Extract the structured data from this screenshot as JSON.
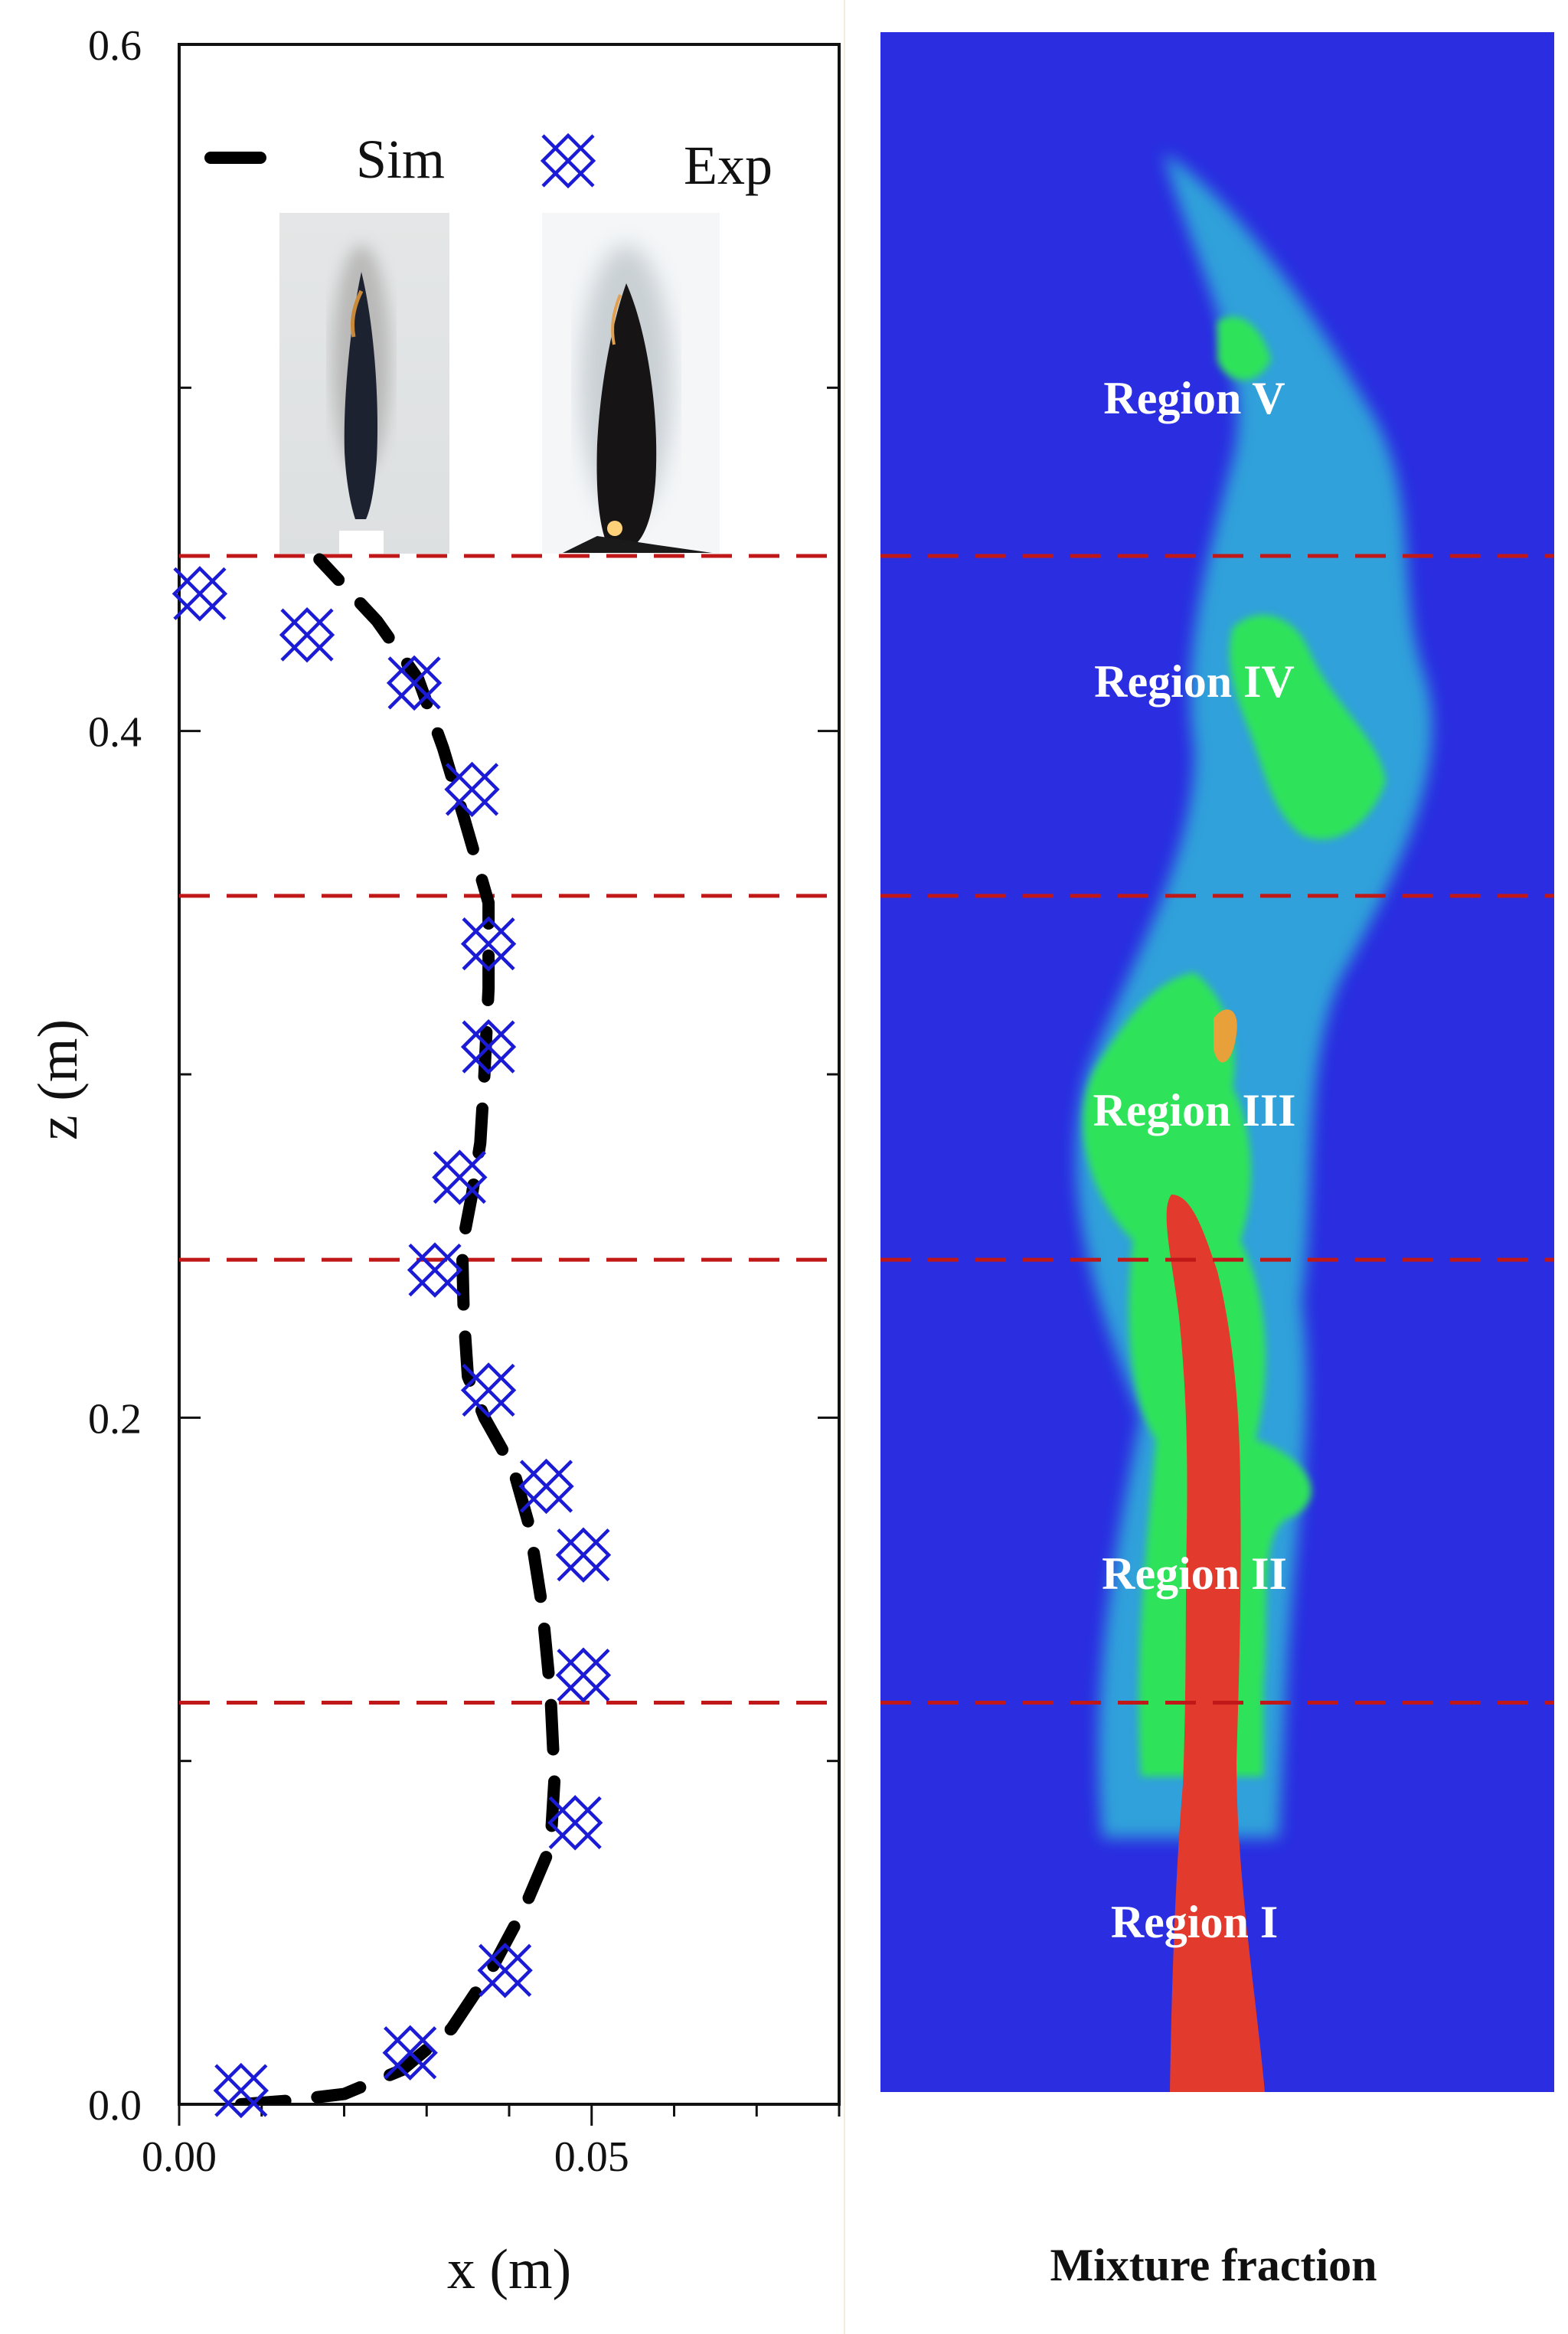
{
  "chart_data": {
    "type": "line",
    "xlabel": "x (m)",
    "ylabel": "z (m)",
    "xlim": [
      0,
      0.08
    ],
    "ylim": [
      0,
      0.6
    ],
    "xticks": [
      {
        "value": 0.0,
        "label": "0.00"
      },
      {
        "value": 0.05,
        "label": "0.05"
      }
    ],
    "yticks": [
      {
        "value": 0.0,
        "label": "0.0"
      },
      {
        "value": 0.2,
        "label": "0.2"
      },
      {
        "value": 0.4,
        "label": "0.4"
      },
      {
        "value": 0.6,
        "label": "0.6"
      }
    ],
    "series": [
      {
        "name": "Sim",
        "style": "dashed-line",
        "color": "#000000",
        "points": [
          [
            0.0075,
            0.0
          ],
          [
            0.013,
            0.001
          ],
          [
            0.02,
            0.003
          ],
          [
            0.027,
            0.01
          ],
          [
            0.033,
            0.022
          ],
          [
            0.038,
            0.04
          ],
          [
            0.042,
            0.058
          ],
          [
            0.045,
            0.075
          ],
          [
            0.0455,
            0.095
          ],
          [
            0.045,
            0.12
          ],
          [
            0.044,
            0.145
          ],
          [
            0.0425,
            0.168
          ],
          [
            0.0405,
            0.185
          ],
          [
            0.037,
            0.2
          ],
          [
            0.035,
            0.212
          ],
          [
            0.0345,
            0.23
          ],
          [
            0.0343,
            0.25
          ],
          [
            0.0355,
            0.265
          ],
          [
            0.0365,
            0.28
          ],
          [
            0.037,
            0.3
          ],
          [
            0.0375,
            0.325
          ],
          [
            0.0375,
            0.35
          ],
          [
            0.0345,
            0.375
          ],
          [
            0.032,
            0.395
          ],
          [
            0.029,
            0.415
          ],
          [
            0.024,
            0.432
          ],
          [
            0.017,
            0.45
          ]
        ]
      },
      {
        "name": "Exp",
        "style": "crossed-diamond-marker",
        "color": "#1b1bd6",
        "points": [
          [
            0.0075,
            0.004
          ],
          [
            0.028,
            0.015
          ],
          [
            0.0395,
            0.039
          ],
          [
            0.048,
            0.082
          ],
          [
            0.049,
            0.125
          ],
          [
            0.049,
            0.16
          ],
          [
            0.0445,
            0.18
          ],
          [
            0.0375,
            0.208
          ],
          [
            0.031,
            0.243
          ],
          [
            0.034,
            0.27
          ],
          [
            0.0375,
            0.308
          ],
          [
            0.0375,
            0.338
          ],
          [
            0.0355,
            0.383
          ],
          [
            0.0285,
            0.414
          ],
          [
            0.0155,
            0.428
          ],
          [
            0.0025,
            0.44
          ]
        ]
      }
    ],
    "legend": {
      "placement": "top",
      "entries": [
        "Sim",
        "Exp"
      ]
    },
    "region_dividers_z": [
      0.117,
      0.246,
      0.352,
      0.451
    ],
    "divider_color": "#c01818"
  },
  "contour": {
    "caption": "Mixture fraction",
    "regions": [
      "Region I",
      "Region II",
      "Region III",
      "Region IV",
      "Region V"
    ],
    "colors": {
      "background": "#2a2ee0",
      "core": "#e23a2c",
      "mid": "#2ee35a",
      "outer": "#33c8d8"
    }
  },
  "photos": [
    {
      "name": "simulation-flame-photo"
    },
    {
      "name": "experiment-flame-photo"
    }
  ]
}
